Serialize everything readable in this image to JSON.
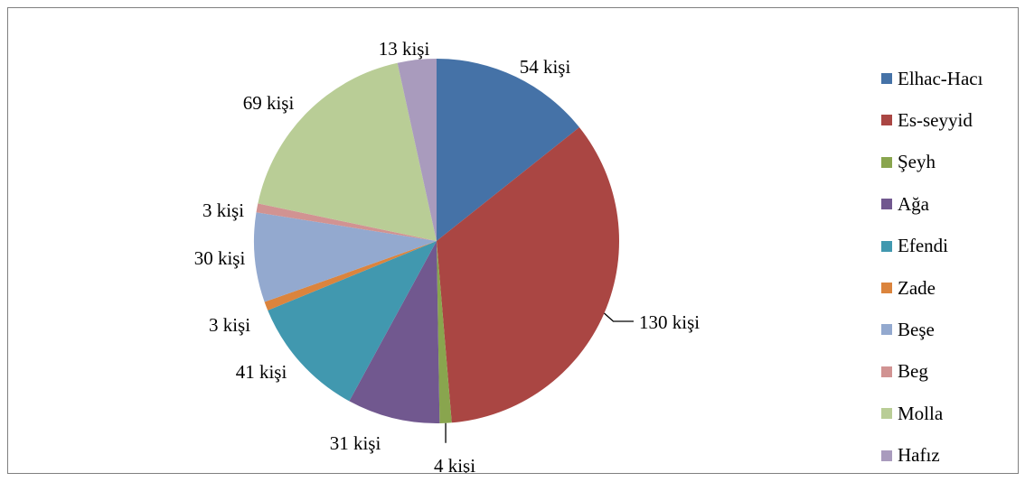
{
  "chart_data": {
    "type": "pie",
    "categories": [
      "Elhac-Hacı",
      "Es-seyyid",
      "Şeyh",
      "Ağa",
      "Efendi",
      "Zade",
      "Beşe",
      "Beg",
      "Molla",
      "Hafız"
    ],
    "values": [
      54,
      130,
      4,
      31,
      41,
      3,
      30,
      3,
      69,
      13
    ],
    "data_labels": [
      "54 kişi",
      "130 kişi",
      "4 kişi",
      "31 kişi",
      "41 kişi",
      "3 kişi",
      "30 kişi",
      "3 kişi",
      "69 kişi",
      "13 kişi"
    ],
    "colors": [
      "#4572A7",
      "#AA4643",
      "#89A54E",
      "#71588F",
      "#4198AF",
      "#DB843D",
      "#93A9CF",
      "#D19392",
      "#B9CD96",
      "#A99BBD"
    ],
    "legend_position": "right"
  }
}
